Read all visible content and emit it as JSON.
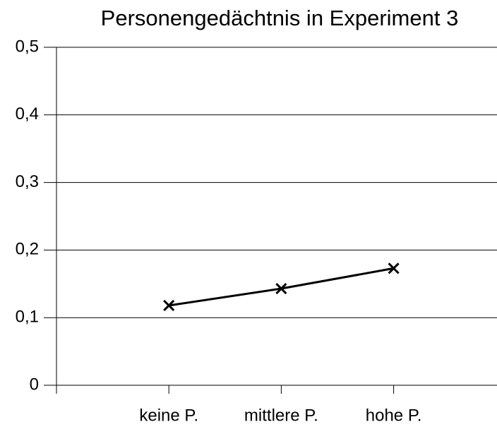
{
  "chart_data": {
    "type": "line",
    "title": "Personengedächtnis in Experiment 3",
    "categories": [
      null,
      "keine P.",
      "mittlere P.",
      "hohe P.",
      null
    ],
    "values": [
      null,
      0.118,
      0.143,
      0.173,
      null
    ],
    "color": "#000000",
    "ylim": [
      0,
      0.5
    ],
    "yticks": [
      0,
      {
        "value": 0.1,
        "label": "0,1"
      },
      {
        "value": 0.2,
        "label": "0,2"
      },
      {
        "value": 0.3,
        "label": "0,3"
      },
      {
        "value": 0.4,
        "label": "0,4"
      },
      {
        "value": 0.5,
        "label": "0,5"
      }
    ],
    "grid": true
  }
}
